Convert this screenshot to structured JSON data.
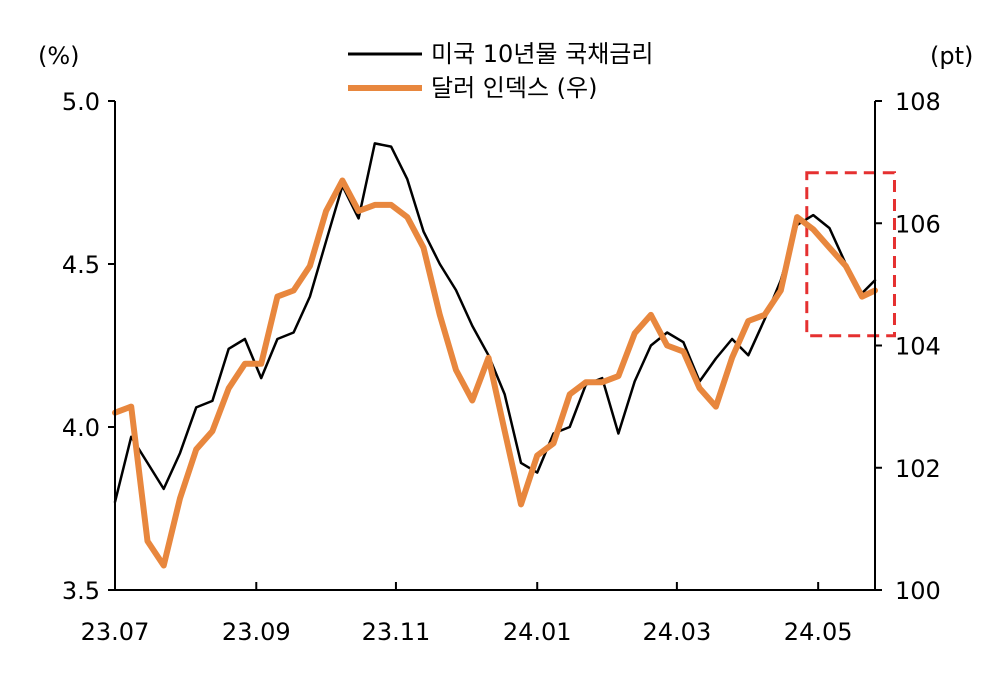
{
  "chart_data": {
    "type": "line",
    "left_axis": {
      "unit_label": "(%)",
      "ylim": [
        3.5,
        5.0
      ],
      "ticks": [
        3.5,
        4.0,
        4.5,
        5.0
      ],
      "tick_labels": [
        "3.5",
        "4.0",
        "4.5",
        "5.0"
      ]
    },
    "right_axis": {
      "unit_label": "(pt)",
      "ylim": [
        100,
        108
      ],
      "ticks": [
        100,
        102,
        104,
        106,
        108
      ],
      "tick_labels": [
        "100",
        "102",
        "104",
        "106",
        "108"
      ]
    },
    "x_axis": {
      "tick_labels": [
        "23.07",
        "23.09",
        "23.11",
        "24.01",
        "24.03",
        "24.05"
      ],
      "tick_positions": [
        0,
        8.7,
        17.3,
        26,
        34.6,
        43.3
      ],
      "xlim": [
        0,
        46.8
      ]
    },
    "series": [
      {
        "name": "미국 10년물 국채금리",
        "axis": "left",
        "color": "#000000",
        "x": [
          0,
          1,
          2,
          3,
          4,
          5,
          6,
          7,
          8,
          9,
          10,
          11,
          12,
          13,
          14,
          15,
          16,
          17,
          18,
          19,
          20,
          21,
          22,
          23,
          24,
          25,
          26,
          27,
          28,
          29,
          30,
          31,
          32,
          33,
          34,
          35,
          36,
          37,
          38,
          39,
          40,
          41,
          42,
          43,
          44,
          45,
          46,
          46.8
        ],
        "values": [
          3.77,
          3.97,
          3.89,
          3.81,
          3.92,
          4.06,
          4.08,
          4.24,
          4.27,
          4.15,
          4.27,
          4.29,
          4.4,
          4.57,
          4.74,
          4.64,
          4.87,
          4.86,
          4.76,
          4.6,
          4.5,
          4.42,
          4.31,
          4.22,
          4.1,
          3.89,
          3.86,
          3.98,
          4.0,
          4.13,
          4.15,
          3.98,
          4.14,
          4.25,
          4.29,
          4.26,
          4.14,
          4.21,
          4.27,
          4.22,
          4.33,
          4.45,
          4.62,
          4.65,
          4.61,
          4.5,
          4.41,
          4.45
        ]
      },
      {
        "name": "달러 인덱스 (우)",
        "axis": "right",
        "color": "#E8873E",
        "x": [
          0,
          1,
          2,
          3,
          4,
          5,
          6,
          7,
          8,
          9,
          10,
          11,
          12,
          13,
          14,
          15,
          16,
          17,
          18,
          19,
          20,
          21,
          22,
          23,
          24,
          25,
          26,
          27,
          28,
          29,
          30,
          31,
          32,
          33,
          34,
          35,
          36,
          37,
          38,
          39,
          40,
          41,
          42,
          43,
          44,
          45,
          46,
          46.8
        ],
        "values": [
          102.9,
          103.0,
          100.8,
          100.4,
          101.5,
          102.3,
          102.6,
          103.3,
          103.7,
          103.7,
          104.8,
          104.9,
          105.3,
          106.2,
          106.7,
          106.2,
          106.3,
          106.3,
          106.1,
          105.6,
          104.5,
          103.6,
          103.1,
          103.8,
          102.6,
          101.4,
          102.2,
          102.4,
          103.2,
          103.4,
          103.4,
          103.5,
          104.2,
          104.5,
          104.0,
          103.9,
          103.3,
          103.0,
          103.8,
          104.4,
          104.5,
          104.9,
          106.1,
          105.9,
          105.6,
          105.3,
          104.8,
          104.9
        ]
      }
    ],
    "highlight_box": {
      "x_range": [
        42.6,
        48.0
      ],
      "left_value_range": [
        4.28,
        4.78
      ],
      "color": "#E53030"
    },
    "legend_placement": "top-center",
    "grid": false
  }
}
